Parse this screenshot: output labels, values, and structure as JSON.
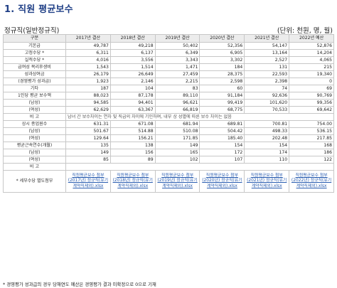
{
  "title": "1. 직원 평균보수",
  "subtitle": "정규직(일반정규직)",
  "unit": "(단위: 천원, 명, 월)",
  "columns": [
    "구분",
    "2017년 결산",
    "2018년 결산",
    "2019년 결산",
    "2020년 결산",
    "2021년 결산",
    "2022년 예산"
  ],
  "rows": [
    {
      "label": "기본급",
      "values": [
        "49,787",
        "49,218",
        "50,402",
        "52,356",
        "54,147",
        "52,876"
      ]
    },
    {
      "label": "고정수당 *",
      "values": [
        "6,311",
        "6,137",
        "6,349",
        "6,905",
        "13,164",
        "14,204"
      ]
    },
    {
      "label": "실적수당 *",
      "values": [
        "4,016",
        "3,556",
        "3,343",
        "3,302",
        "2,527",
        "4,065"
      ]
    },
    {
      "label": "급여성 복리후생비",
      "values": [
        "1,543",
        "1,514",
        "1,471",
        "184",
        "131",
        "215"
      ]
    },
    {
      "label": "성과상여금",
      "values": [
        "26,179",
        "26,649",
        "27,459",
        "28,375",
        "22,593",
        "19,340"
      ]
    },
    {
      "label": "(경영평가 성과급)",
      "values": [
        "1,923",
        "2,146",
        "2,215",
        "2,598",
        "2,398",
        "0"
      ]
    },
    {
      "label": "기타",
      "values": [
        "187",
        "104",
        "83",
        "60",
        "74",
        "69"
      ]
    },
    {
      "label": "1인당 평균 보수액",
      "values": [
        "88,023",
        "87,178",
        "89,110",
        "91,184",
        "92,636",
        "90,769"
      ]
    },
    {
      "label": "(남성)",
      "values": [
        "94,585",
        "94,401",
        "96,621",
        "99,419",
        "101,620",
        "99,356"
      ]
    },
    {
      "label": "(여성)",
      "values": [
        "62,629",
        "63,367",
        "66,819",
        "68,775",
        "70,533",
        "69,642"
      ]
    }
  ],
  "note1": {
    "label": "비 고",
    "text": "남녀 간 보수차이는 연차 및 직급의 차이에 기인하며, 내부 상 성별에 따른 보수 차이는 없음"
  },
  "rows2": [
    {
      "label": "상시 종업원수",
      "values": [
        "631.31",
        "671.08",
        "681.94",
        "689.81",
        "700.81",
        "754.00"
      ]
    },
    {
      "label": "(남성)",
      "values": [
        "501.67",
        "514.88",
        "510.08",
        "504.42",
        "498.33",
        "536.15"
      ]
    },
    {
      "label": "(여성)",
      "values": [
        "129.64",
        "156.21",
        "171.85",
        "185.40",
        "202.48",
        "217.85"
      ]
    },
    {
      "label": "평균근속연수(개월)",
      "values": [
        "135",
        "138",
        "149",
        "154",
        "154",
        "168"
      ]
    },
    {
      "label": "(남성)",
      "values": [
        "149",
        "156",
        "165",
        "172",
        "174",
        "186"
      ]
    },
    {
      "label": "(여성)",
      "values": [
        "85",
        "89",
        "102",
        "107",
        "110",
        "122"
      ]
    }
  ],
  "note2": {
    "label": "비 고",
    "text": ""
  },
  "files": {
    "label": "* 세부수당 별도첨부",
    "items": [
      "직원평균보수 첨부 (2017년) 정규직(유기계약직제외).xlsx",
      "직원평균보수 첨부 (2018년) 정규직(유기계약직제외).xlsx",
      "직원평균보수 첨부 (2019년) 정규직(유기계약직제외).xlsx",
      "직원평균보수 첨부 (2020년) 정규직(유기계약직제외).xlsx",
      "직원평균보수 첨부 (2021년) 정규직(유기계약직제외).xlsx",
      "직원평균보수 첨부 (2022년) 정규직(유기계약직제외).xlsx"
    ]
  },
  "footnote": "* 경영평가 성과급의 경우 당해연도 예산은 경영평가 결과 미확정으로 0으로 기재"
}
